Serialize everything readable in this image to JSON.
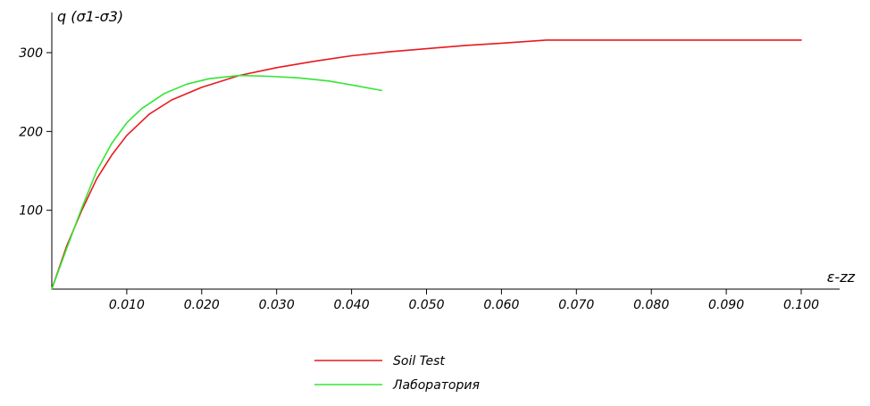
{
  "chart_data": {
    "type": "line",
    "ylabel": "q (σ1-σ3)",
    "xlabel": "ε-zz",
    "xlim": [
      0,
      0.1
    ],
    "ylim": [
      0,
      300
    ],
    "x_ticks": [
      0.01,
      0.02,
      0.03,
      0.04,
      0.05,
      0.06,
      0.07,
      0.08,
      0.09,
      0.1
    ],
    "x_tick_labels": [
      "0.010",
      "0.020",
      "0.030",
      "0.040",
      "0.050",
      "0.060",
      "0.070",
      "0.080",
      "0.090",
      "0.100"
    ],
    "y_ticks": [
      100,
      200,
      300
    ],
    "y_tick_labels": [
      "100",
      "200",
      "300"
    ],
    "grid": false,
    "legend_position": "bottom-center",
    "series": [
      {
        "name": "Soil Test",
        "color": "#e8191e",
        "x": [
          0,
          0.002,
          0.004,
          0.006,
          0.008,
          0.01,
          0.013,
          0.016,
          0.02,
          0.025,
          0.03,
          0.035,
          0.04,
          0.045,
          0.05,
          0.055,
          0.06,
          0.066,
          0.07,
          0.08,
          0.09,
          0.1
        ],
        "y": [
          0,
          55,
          100,
          140,
          170,
          195,
          222,
          240,
          256,
          271,
          281,
          289,
          296,
          301,
          305,
          309,
          312,
          316,
          316,
          316,
          316,
          316
        ]
      },
      {
        "name": "Лаборатория",
        "color": "#33e633",
        "x": [
          0,
          0.002,
          0.004,
          0.006,
          0.008,
          0.01,
          0.012,
          0.015,
          0.018,
          0.021,
          0.025,
          0.029,
          0.033,
          0.037,
          0.04,
          0.044
        ],
        "y": [
          0,
          52,
          103,
          150,
          185,
          211,
          229,
          248,
          260,
          267,
          271,
          270,
          268,
          264,
          259,
          252
        ]
      }
    ]
  }
}
